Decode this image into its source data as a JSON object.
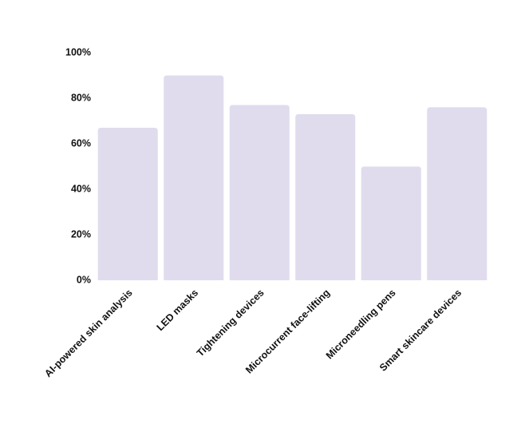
{
  "chart_data": {
    "type": "bar",
    "categories": [
      "AI-powered skin analysis",
      "LED masks",
      "Tightening devices",
      "Microcurrent face-lifting",
      "Microneedling pens",
      "Smart skincare devices"
    ],
    "values": [
      67,
      90,
      77,
      73,
      50,
      76
    ],
    "color": "#e0dcee",
    "ylim": [
      0,
      100
    ],
    "yticks": [
      {
        "value": 0,
        "label": "0%"
      },
      {
        "value": 20,
        "label": "20%"
      },
      {
        "value": 40,
        "label": "40%"
      },
      {
        "value": 60,
        "label": "60%"
      },
      {
        "value": 80,
        "label": "80%"
      },
      {
        "value": 100,
        "label": "100%"
      }
    ],
    "grid": false
  }
}
